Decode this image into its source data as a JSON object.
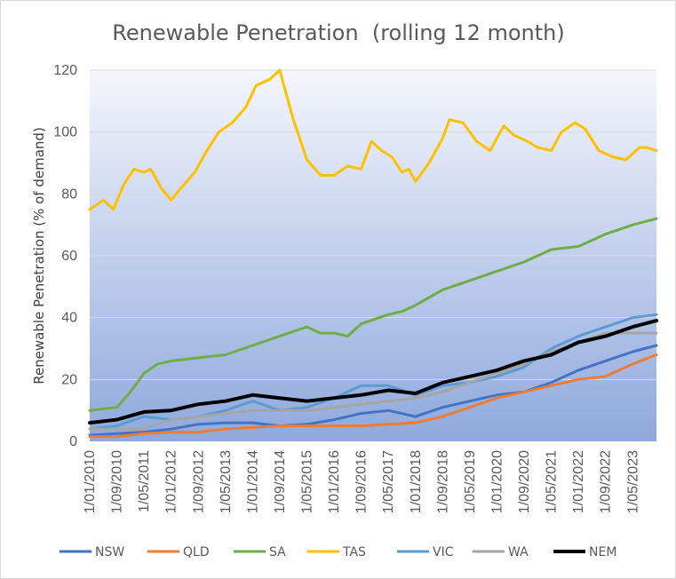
{
  "chart_data": {
    "type": "line",
    "title": "Renewable Penetration  (rolling 12 month)",
    "ylabel": "Renewable Penetration (% of demand)",
    "xlabel": "",
    "ylim": [
      0,
      120
    ],
    "yticks": [
      0,
      20,
      40,
      60,
      80,
      100,
      120
    ],
    "x_tick_labels": [
      "1/01/2010",
      "1/09/2010",
      "1/05/2011",
      "1/01/2012",
      "1/09/2012",
      "1/05/2013",
      "1/01/2014",
      "1/09/2014",
      "1/05/2015",
      "1/01/2016",
      "1/09/2016",
      "1/05/2017",
      "1/01/2018",
      "1/09/2018",
      "1/05/2019",
      "1/01/2020",
      "1/09/2020",
      "1/05/2021",
      "1/01/2022",
      "1/09/2022",
      "1/05/2023"
    ],
    "grid": "horizontal",
    "legend_position": "bottom",
    "background": "vertical gradient (light top to blue bottom)",
    "series": [
      {
        "name": "NSW",
        "color": "#4472c4",
        "points": [
          [
            "2010-01",
            2
          ],
          [
            "2010-09",
            2.5
          ],
          [
            "2011-05",
            3
          ],
          [
            "2012-01",
            4
          ],
          [
            "2012-09",
            5.5
          ],
          [
            "2013-05",
            6
          ],
          [
            "2014-01",
            6
          ],
          [
            "2014-09",
            5
          ],
          [
            "2015-05",
            5.5
          ],
          [
            "2016-01",
            7
          ],
          [
            "2016-09",
            9
          ],
          [
            "2017-05",
            10
          ],
          [
            "2018-01",
            8
          ],
          [
            "2018-09",
            11
          ],
          [
            "2019-05",
            13
          ],
          [
            "2020-01",
            15
          ],
          [
            "2020-09",
            16
          ],
          [
            "2021-05",
            19
          ],
          [
            "2022-01",
            23
          ],
          [
            "2022-09",
            26
          ],
          [
            "2023-05",
            29
          ],
          [
            "2023-12",
            31
          ]
        ]
      },
      {
        "name": "QLD",
        "color": "#ed7d31",
        "points": [
          [
            "2010-01",
            1.5
          ],
          [
            "2010-09",
            1.5
          ],
          [
            "2011-05",
            2.5
          ],
          [
            "2012-01",
            3
          ],
          [
            "2012-09",
            3
          ],
          [
            "2013-05",
            4
          ],
          [
            "2014-01",
            4.5
          ],
          [
            "2014-09",
            5
          ],
          [
            "2015-05",
            5
          ],
          [
            "2016-01",
            5
          ],
          [
            "2016-09",
            5
          ],
          [
            "2017-05",
            5.5
          ],
          [
            "2018-01",
            6
          ],
          [
            "2018-09",
            8
          ],
          [
            "2019-05",
            11
          ],
          [
            "2020-01",
            14
          ],
          [
            "2020-09",
            16
          ],
          [
            "2021-05",
            18
          ],
          [
            "2022-01",
            20
          ],
          [
            "2022-09",
            21
          ],
          [
            "2023-05",
            25
          ],
          [
            "2023-12",
            28
          ]
        ]
      },
      {
        "name": "SA",
        "color": "#70ad47",
        "points": [
          [
            "2010-01",
            10
          ],
          [
            "2010-05",
            10.5
          ],
          [
            "2010-09",
            11
          ],
          [
            "2011-01",
            16
          ],
          [
            "2011-05",
            22
          ],
          [
            "2011-09",
            25
          ],
          [
            "2012-01",
            26
          ],
          [
            "2012-09",
            27
          ],
          [
            "2013-05",
            28
          ],
          [
            "2014-01",
            31
          ],
          [
            "2014-09",
            34
          ],
          [
            "2015-05",
            37
          ],
          [
            "2015-09",
            35
          ],
          [
            "2016-01",
            35
          ],
          [
            "2016-05",
            34
          ],
          [
            "2016-09",
            38
          ],
          [
            "2017-05",
            41
          ],
          [
            "2017-09",
            42
          ],
          [
            "2018-01",
            44
          ],
          [
            "2018-09",
            49
          ],
          [
            "2019-05",
            52
          ],
          [
            "2020-01",
            55
          ],
          [
            "2020-09",
            58
          ],
          [
            "2021-05",
            62
          ],
          [
            "2022-01",
            63
          ],
          [
            "2022-09",
            67
          ],
          [
            "2023-05",
            70
          ],
          [
            "2023-12",
            72
          ]
        ]
      },
      {
        "name": "TAS",
        "color": "#ffc000",
        "points": [
          [
            "2010-01",
            75
          ],
          [
            "2010-05",
            78
          ],
          [
            "2010-08",
            75
          ],
          [
            "2010-11",
            83
          ],
          [
            "2011-02",
            88
          ],
          [
            "2011-05",
            87
          ],
          [
            "2011-07",
            88
          ],
          [
            "2011-10",
            82
          ],
          [
            "2012-01",
            78
          ],
          [
            "2012-04",
            82
          ],
          [
            "2012-08",
            87
          ],
          [
            "2012-11",
            93
          ],
          [
            "2013-03",
            100
          ],
          [
            "2013-07",
            103
          ],
          [
            "2013-11",
            108
          ],
          [
            "2014-02",
            115
          ],
          [
            "2014-06",
            117
          ],
          [
            "2014-09",
            120
          ],
          [
            "2015-01",
            104
          ],
          [
            "2015-05",
            91
          ],
          [
            "2015-09",
            86
          ],
          [
            "2016-01",
            86
          ],
          [
            "2016-05",
            89
          ],
          [
            "2016-09",
            88
          ],
          [
            "2016-12",
            97
          ],
          [
            "2017-03",
            94
          ],
          [
            "2017-06",
            92
          ],
          [
            "2017-09",
            87
          ],
          [
            "2017-11",
            88
          ],
          [
            "2018-01",
            84
          ],
          [
            "2018-05",
            90
          ],
          [
            "2018-09",
            98
          ],
          [
            "2018-11",
            104
          ],
          [
            "2019-03",
            103
          ],
          [
            "2019-07",
            97
          ],
          [
            "2019-11",
            94
          ],
          [
            "2020-03",
            102
          ],
          [
            "2020-06",
            99
          ],
          [
            "2020-10",
            97
          ],
          [
            "2021-01",
            95
          ],
          [
            "2021-05",
            94
          ],
          [
            "2021-08",
            100
          ],
          [
            "2021-12",
            103
          ],
          [
            "2022-03",
            101
          ],
          [
            "2022-07",
            94
          ],
          [
            "2022-11",
            92
          ],
          [
            "2023-03",
            91
          ],
          [
            "2023-07",
            95
          ],
          [
            "2023-09",
            95
          ],
          [
            "2023-12",
            94
          ]
        ]
      },
      {
        "name": "VIC",
        "color": "#5b9bd5",
        "points": [
          [
            "2010-01",
            4
          ],
          [
            "2010-09",
            5
          ],
          [
            "2011-05",
            8
          ],
          [
            "2012-01",
            7
          ],
          [
            "2012-09",
            8
          ],
          [
            "2013-05",
            10
          ],
          [
            "2014-01",
            13
          ],
          [
            "2014-09",
            10
          ],
          [
            "2015-05",
            11
          ],
          [
            "2016-01",
            14
          ],
          [
            "2016-09",
            18
          ],
          [
            "2017-05",
            18
          ],
          [
            "2018-01",
            15
          ],
          [
            "2018-09",
            18
          ],
          [
            "2019-05",
            19
          ],
          [
            "2020-01",
            21
          ],
          [
            "2020-09",
            24
          ],
          [
            "2021-05",
            30
          ],
          [
            "2022-01",
            34
          ],
          [
            "2022-09",
            37
          ],
          [
            "2023-05",
            40
          ],
          [
            "2023-12",
            41
          ]
        ]
      },
      {
        "name": "WA",
        "color": "#a5a5a5",
        "points": [
          [
            "2010-01",
            4
          ],
          [
            "2010-09",
            4
          ],
          [
            "2011-05",
            4
          ],
          [
            "2012-01",
            7
          ],
          [
            "2012-09",
            8
          ],
          [
            "2013-05",
            9
          ],
          [
            "2014-01",
            10
          ],
          [
            "2014-09",
            10
          ],
          [
            "2015-05",
            10
          ],
          [
            "2016-01",
            11
          ],
          [
            "2016-09",
            12
          ],
          [
            "2017-05",
            13
          ],
          [
            "2018-01",
            14
          ],
          [
            "2018-09",
            16
          ],
          [
            "2019-05",
            19
          ],
          [
            "2020-01",
            22
          ],
          [
            "2020-09",
            25
          ],
          [
            "2021-05",
            29
          ],
          [
            "2022-01",
            32
          ],
          [
            "2022-09",
            35
          ],
          [
            "2023-05",
            35
          ],
          [
            "2023-12",
            35
          ]
        ]
      },
      {
        "name": "NEM",
        "color": "#000000",
        "points": [
          [
            "2010-01",
            6
          ],
          [
            "2010-09",
            7
          ],
          [
            "2011-05",
            9.5
          ],
          [
            "2012-01",
            10
          ],
          [
            "2012-09",
            12
          ],
          [
            "2013-05",
            13
          ],
          [
            "2014-01",
            15
          ],
          [
            "2014-09",
            14
          ],
          [
            "2015-05",
            13
          ],
          [
            "2016-01",
            14
          ],
          [
            "2016-09",
            15
          ],
          [
            "2017-05",
            16.5
          ],
          [
            "2018-01",
            15.5
          ],
          [
            "2018-09",
            19
          ],
          [
            "2019-05",
            21
          ],
          [
            "2020-01",
            23
          ],
          [
            "2020-09",
            26
          ],
          [
            "2021-05",
            28
          ],
          [
            "2022-01",
            32
          ],
          [
            "2022-09",
            34
          ],
          [
            "2023-05",
            37
          ],
          [
            "2023-12",
            39
          ]
        ]
      }
    ]
  },
  "colors": {
    "plot_top": "#f4f6fc",
    "plot_bottom": "#8fa9dc",
    "gridline": "#d9d9d9",
    "text": "#595959"
  }
}
